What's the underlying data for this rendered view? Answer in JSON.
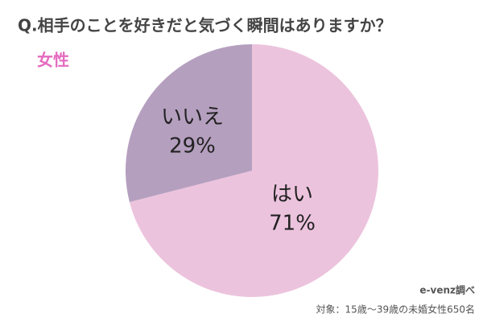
{
  "chart_data": {
    "type": "pie",
    "title": "Q.相手のことを好きだと気づく瞬間はありますか？",
    "subtitle": "女性",
    "categories": [
      "はい",
      "いいえ"
    ],
    "values": [
      71,
      29
    ],
    "value_labels": [
      "71%",
      "29%"
    ],
    "colors": [
      "#ecc3dd",
      "#b59fbf"
    ],
    "subtitle_color": "#e46bbf",
    "notes": [
      "e-venz調べ",
      "対象：15歳〜39歳の未婚女性650名"
    ]
  }
}
